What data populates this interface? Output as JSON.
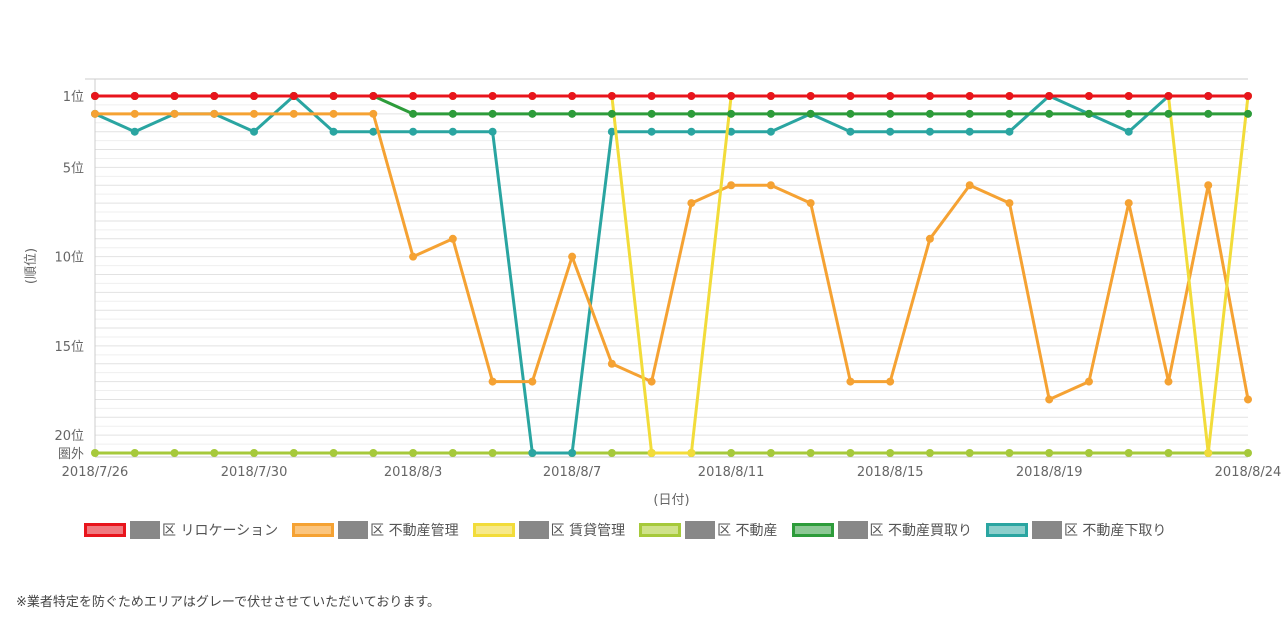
{
  "chart_data": {
    "type": "line",
    "xlabel": "(日付)",
    "ylabel": "(順位)",
    "x": [
      "2018/7/26",
      "2018/7/27",
      "2018/7/28",
      "2018/7/29",
      "2018/7/30",
      "2018/7/31",
      "2018/8/1",
      "2018/8/2",
      "2018/8/3",
      "2018/8/4",
      "2018/8/5",
      "2018/8/6",
      "2018/8/7",
      "2018/8/8",
      "2018/8/9",
      "2018/8/10",
      "2018/8/11",
      "2018/8/12",
      "2018/8/13",
      "2018/8/14",
      "2018/8/15",
      "2018/8/16",
      "2018/8/17",
      "2018/8/18",
      "2018/8/19",
      "2018/8/20",
      "2018/8/21",
      "2018/8/22",
      "2018/8/23",
      "2018/8/24"
    ],
    "x_tick_labels": [
      "2018/7/26",
      "2018/7/30",
      "2018/8/3",
      "2018/8/7",
      "2018/8/11",
      "2018/8/15",
      "2018/8/19",
      "2018/8/24"
    ],
    "x_tick_indices": [
      0,
      4,
      8,
      12,
      16,
      20,
      24,
      29
    ],
    "y_tick_labels": [
      {
        "value": 1,
        "label": "1位"
      },
      {
        "value": 5,
        "label": "5位"
      },
      {
        "value": 10,
        "label": "10位"
      },
      {
        "value": 15,
        "label": "15位"
      },
      {
        "value": 20,
        "label": "20位"
      },
      {
        "value": 21,
        "label": "圏外"
      }
    ],
    "ylim": [
      1,
      21
    ],
    "y_reversed": true,
    "grid": true,
    "legend_position": "bottom",
    "series": [
      {
        "name": "区 リロケーション",
        "color": "#e8141c",
        "fill": "#f07a80",
        "values": [
          1,
          1,
          1,
          1,
          1,
          1,
          1,
          1,
          1,
          1,
          1,
          1,
          1,
          1,
          1,
          1,
          1,
          1,
          1,
          1,
          1,
          1,
          1,
          1,
          1,
          1,
          1,
          1,
          1,
          1
        ]
      },
      {
        "name": "区 不動産管理",
        "color": "#f5a233",
        "fill": "#fbc57e",
        "values": [
          2,
          2,
          2,
          2,
          2,
          2,
          2,
          2,
          10,
          9,
          17,
          17,
          10,
          16,
          17,
          7,
          6,
          6,
          7,
          17,
          17,
          9,
          6,
          7,
          18,
          17,
          7,
          17,
          6,
          18
        ]
      },
      {
        "name": "区 賃貸管理",
        "color": "#f2dc3a",
        "fill": "#f7e98a",
        "values": [
          1,
          1,
          1,
          1,
          1,
          1,
          1,
          1,
          1,
          1,
          1,
          1,
          1,
          1,
          21,
          21,
          1,
          1,
          1,
          1,
          1,
          1,
          1,
          1,
          1,
          1,
          1,
          1,
          21,
          1
        ]
      },
      {
        "name": "区 不動産",
        "color": "#a6c93b",
        "fill": "#cfe28a",
        "values": [
          21,
          21,
          21,
          21,
          21,
          21,
          21,
          21,
          21,
          21,
          21,
          21,
          21,
          21,
          21,
          21,
          21,
          21,
          21,
          21,
          21,
          21,
          21,
          21,
          21,
          21,
          21,
          21,
          21,
          21
        ]
      },
      {
        "name": "区 不動産買取り",
        "color": "#2d9c3a",
        "fill": "#8cc894",
        "values": [
          1,
          1,
          1,
          1,
          1,
          1,
          1,
          1,
          2,
          2,
          2,
          2,
          2,
          2,
          2,
          2,
          2,
          2,
          2,
          2,
          2,
          2,
          2,
          2,
          2,
          2,
          2,
          2,
          2,
          2
        ]
      },
      {
        "name": "区 不動産下取り",
        "color": "#2aa5a1",
        "fill": "#8ccfcc",
        "values": [
          2,
          3,
          2,
          2,
          3,
          1,
          3,
          3,
          3,
          3,
          3,
          21,
          21,
          3,
          3,
          3,
          3,
          3,
          2,
          3,
          3,
          3,
          3,
          3,
          1,
          2,
          3,
          1,
          1,
          1
        ]
      }
    ]
  },
  "note": "※業者特定を防ぐためエリアはグレーで伏せさせていただいております。"
}
